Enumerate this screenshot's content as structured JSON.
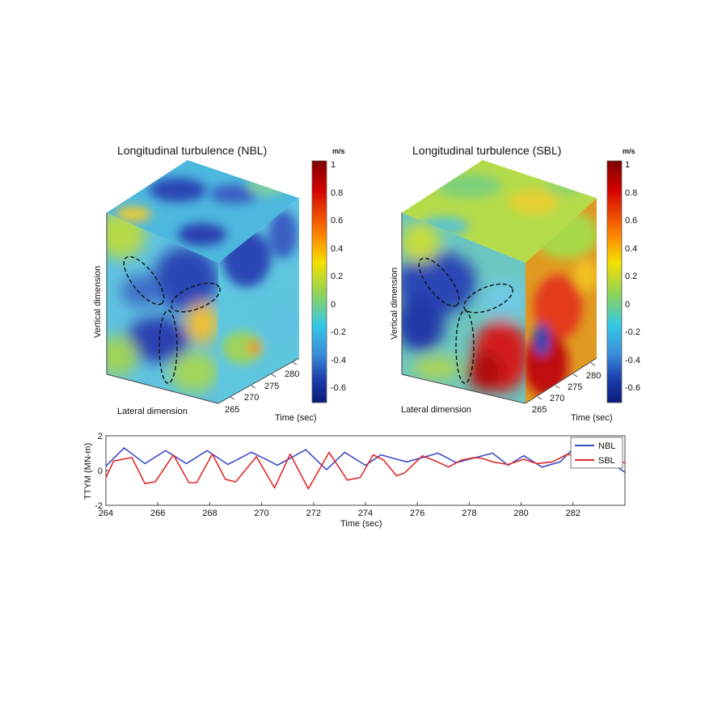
{
  "chart_data": [
    {
      "type": "heatmap",
      "title": "Longitudinal turbulence  (NBL)",
      "colorbar": {
        "unit": "m/s",
        "range": [
          -0.7,
          1
        ],
        "ticks": [
          "1",
          "0.8",
          "0.6",
          "0.4",
          "0.2",
          "0",
          "-0.2",
          "-0.4",
          "-0.6"
        ]
      },
      "xlabel": "Lateral dimension",
      "ylabel": "Vertical dimension",
      "zlabel": "Time (sec)",
      "z_ticks": [
        "265",
        "270",
        "275",
        "280"
      ]
    },
    {
      "type": "heatmap",
      "title": "Longitudinal turbulence  (SBL)",
      "colorbar": {
        "unit": "m/s",
        "range": [
          -0.7,
          1
        ],
        "ticks": [
          "1",
          "0.8",
          "0.6",
          "0.4",
          "0.2",
          "0",
          "-0.2",
          "-0.4",
          "-0.6"
        ]
      },
      "xlabel": "Lateral dimension",
      "ylabel": "Vertical dimension",
      "zlabel": "Time (sec)",
      "z_ticks": [
        "265",
        "270",
        "275",
        "280"
      ]
    },
    {
      "type": "line",
      "xlabel": "Time (sec)",
      "ylabel": "TTYM (MN-m)",
      "xlim": [
        264,
        284
      ],
      "ylim": [
        -2,
        2
      ],
      "x_ticks": [
        "264",
        "266",
        "268",
        "270",
        "272",
        "274",
        "276",
        "278",
        "280",
        "282"
      ],
      "y_ticks": [
        "2",
        "0",
        "-2"
      ],
      "legend_position": "top-right",
      "series": [
        {
          "name": "NBL",
          "color": "#3e4cc4",
          "points": [
            [
              264,
              0.25
            ],
            [
              264.7,
              1.3
            ],
            [
              265.5,
              0.4
            ],
            [
              266.3,
              1.15
            ],
            [
              267.1,
              0.4
            ],
            [
              267.9,
              1.15
            ],
            [
              268.7,
              0.35
            ],
            [
              269.6,
              1.05
            ],
            [
              270.3,
              0.55
            ],
            [
              270.6,
              0.3
            ],
            [
              271.7,
              1.2
            ],
            [
              272.5,
              0.05
            ],
            [
              273.2,
              1.05
            ],
            [
              274,
              0.3
            ],
            [
              274.6,
              0.9
            ],
            [
              275.2,
              0.65
            ],
            [
              275.6,
              0.5
            ],
            [
              276.8,
              1.0
            ],
            [
              277.5,
              0.45
            ],
            [
              278,
              0.65
            ],
            [
              278.9,
              1.0
            ],
            [
              279.5,
              0.3
            ],
            [
              280.1,
              0.85
            ],
            [
              280.8,
              0.2
            ],
            [
              281.5,
              0.5
            ],
            [
              282,
              1.25
            ],
            [
              282.6,
              0.9
            ],
            [
              283,
              0.6
            ],
            [
              283.5,
              0.4
            ],
            [
              284,
              -0.1
            ]
          ]
        },
        {
          "name": "SBL",
          "color": "#e02a2a",
          "points": [
            [
              264,
              -0.4
            ],
            [
              264.3,
              0.55
            ],
            [
              265,
              0.75
            ],
            [
              265.5,
              -0.75
            ],
            [
              265.9,
              -0.65
            ],
            [
              266.6,
              0.9
            ],
            [
              267.2,
              -0.7
            ],
            [
              267.5,
              -0.7
            ],
            [
              268.1,
              0.95
            ],
            [
              268.6,
              -0.5
            ],
            [
              269,
              -0.65
            ],
            [
              269.8,
              0.8
            ],
            [
              270.5,
              -1.0
            ],
            [
              271.1,
              0.95
            ],
            [
              271.8,
              -1.05
            ],
            [
              272.6,
              1.05
            ],
            [
              273.3,
              -0.55
            ],
            [
              273.8,
              -0.4
            ],
            [
              274.3,
              0.9
            ],
            [
              274.7,
              0.6
            ],
            [
              275.2,
              -0.3
            ],
            [
              275.5,
              -0.15
            ],
            [
              276.2,
              0.85
            ],
            [
              276.7,
              0.55
            ],
            [
              277.2,
              0.2
            ],
            [
              277.7,
              0.6
            ],
            [
              278.2,
              0.75
            ],
            [
              278.5,
              0.7
            ],
            [
              278.9,
              0.5
            ],
            [
              279.5,
              0.35
            ],
            [
              280.1,
              0.65
            ],
            [
              280.6,
              0.4
            ],
            [
              281.2,
              0.5
            ],
            [
              281.8,
              0.95
            ],
            [
              282.3,
              0.65
            ],
            [
              282.6,
              0.3
            ],
            [
              283.2,
              0.6
            ],
            [
              284,
              0.45
            ]
          ]
        }
      ]
    }
  ]
}
